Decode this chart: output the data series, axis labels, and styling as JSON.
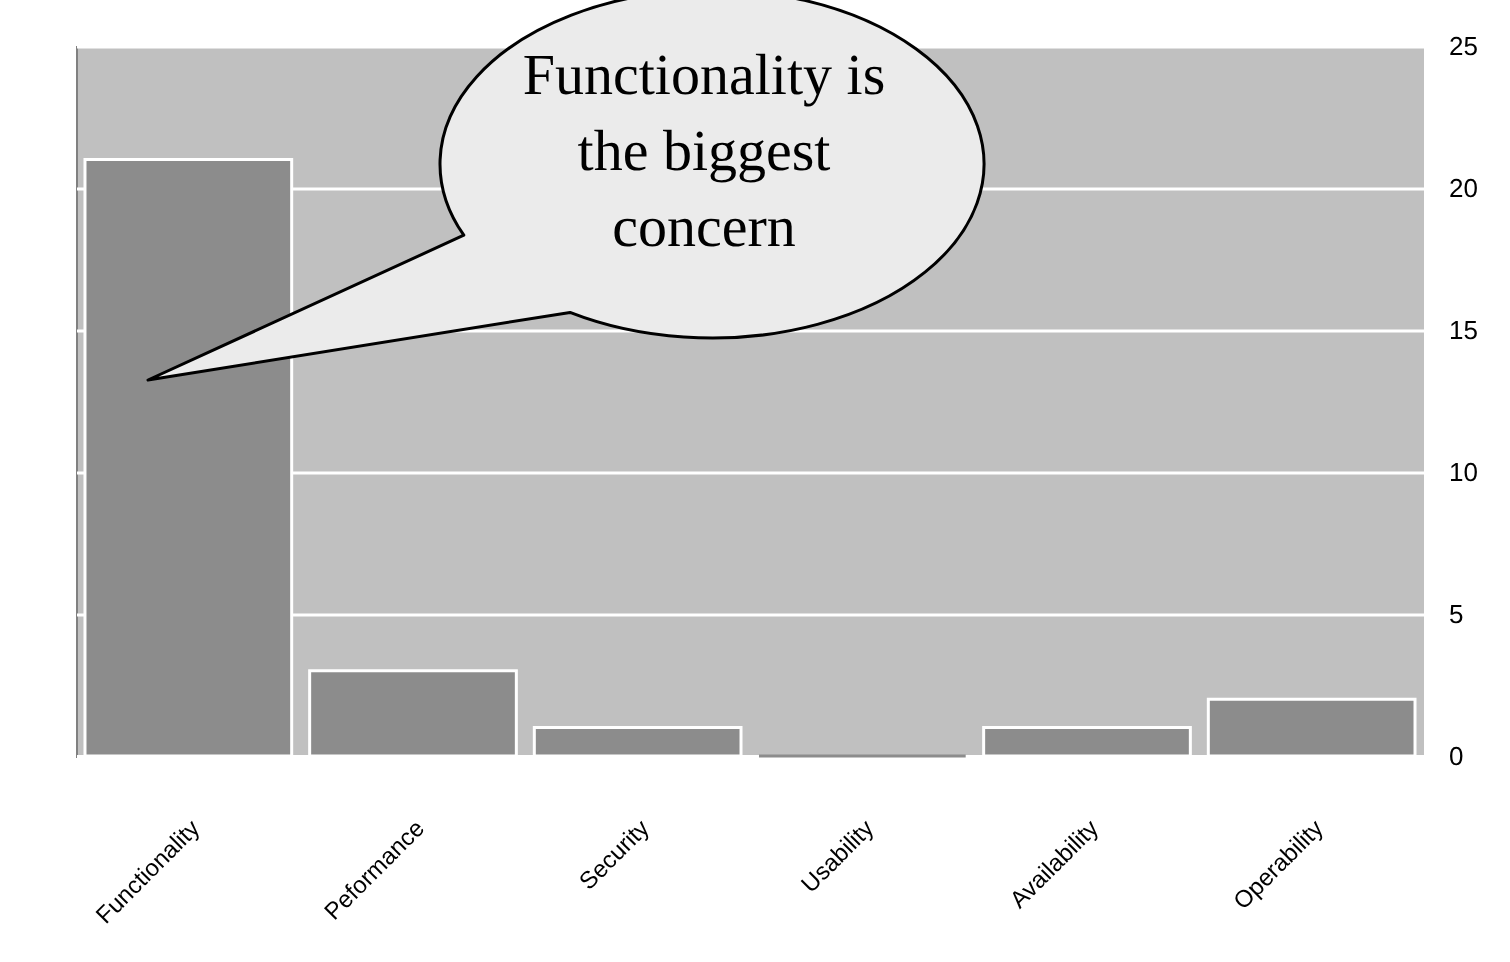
{
  "chart_data": {
    "type": "bar",
    "categories": [
      "Functionality",
      "Peformance",
      "Security",
      "Usability",
      "Availability",
      "Operability"
    ],
    "values": [
      21,
      3,
      1,
      0,
      1,
      2
    ],
    "color": "#8c8c8c",
    "ylim": [
      0,
      25
    ],
    "yticks": [
      0,
      5,
      10,
      15,
      20,
      25
    ],
    "grid": "y",
    "annotations": [
      "Functionality is the biggest concern"
    ]
  }
}
